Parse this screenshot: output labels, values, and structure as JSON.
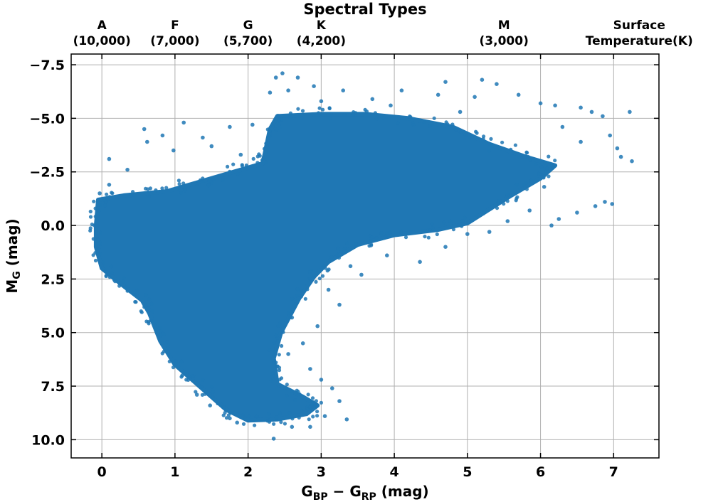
{
  "chart_data": {
    "type": "scatter",
    "title": "Spectral Types",
    "xlabel": {
      "main": "G",
      "sub1": "BP",
      "mid": " − G",
      "sub2": "RP",
      "tail": " (mag)"
    },
    "ylabel": {
      "main": "M",
      "sub": "G",
      "tail": " (mag)"
    },
    "xlim": [
      -0.42,
      7.62
    ],
    "ylim": [
      10.85,
      -8.0
    ],
    "y_inverted": true,
    "grid": true,
    "point_color": "#1f77b4",
    "x_ticks": [
      {
        "value": 0,
        "label": "0"
      },
      {
        "value": 1,
        "label": "1"
      },
      {
        "value": 2,
        "label": "2"
      },
      {
        "value": 3,
        "label": "3"
      },
      {
        "value": 4,
        "label": "4"
      },
      {
        "value": 5,
        "label": "5"
      },
      {
        "value": 6,
        "label": "6"
      },
      {
        "value": 7,
        "label": "7"
      }
    ],
    "y_ticks": [
      {
        "value": -7.5,
        "label": "−7.5"
      },
      {
        "value": -5.0,
        "label": "−5.0"
      },
      {
        "value": -2.5,
        "label": "−2.5"
      },
      {
        "value": 0.0,
        "label": "0.0"
      },
      {
        "value": 2.5,
        "label": "2.5"
      },
      {
        "value": 5.0,
        "label": "5.0"
      },
      {
        "value": 7.5,
        "label": "7.5"
      },
      {
        "value": 10.0,
        "label": "10.0"
      }
    ],
    "top_axis": [
      {
        "x": 0,
        "line1": "A",
        "line2": "(10,000)"
      },
      {
        "x": 1,
        "line1": "F",
        "line2": "(7,000)"
      },
      {
        "x": 2,
        "line1": "G",
        "line2": "(5,700)"
      },
      {
        "x": 3,
        "line1": "K",
        "line2": "(4,200)"
      },
      {
        "x": 5.5,
        "line1": "M",
        "line2": "(3,000)"
      },
      {
        "x": 7.35,
        "line1": "Surface",
        "line2": "Temperature(K)"
      }
    ],
    "dense_region": [
      [
        -0.05,
        -1.2
      ],
      [
        0.3,
        -1.4
      ],
      [
        0.9,
        -1.6
      ],
      [
        1.4,
        -2.1
      ],
      [
        1.8,
        -2.5
      ],
      [
        2.2,
        -2.9
      ],
      [
        2.3,
        -4.5
      ],
      [
        2.4,
        -5.1
      ],
      [
        3.0,
        -5.2
      ],
      [
        3.6,
        -5.2
      ],
      [
        4.2,
        -5.0
      ],
      [
        4.8,
        -4.6
      ],
      [
        5.3,
        -3.8
      ],
      [
        5.8,
        -3.2
      ],
      [
        6.2,
        -2.8
      ],
      [
        6.0,
        -2.2
      ],
      [
        5.6,
        -1.4
      ],
      [
        5.0,
        -0.1
      ],
      [
        4.6,
        0.2
      ],
      [
        4.0,
        0.45
      ],
      [
        3.5,
        0.9
      ],
      [
        3.1,
        1.7
      ],
      [
        2.9,
        2.4
      ],
      [
        2.7,
        3.4
      ],
      [
        2.45,
        5.0
      ],
      [
        2.35,
        6.2
      ],
      [
        2.4,
        7.4
      ],
      [
        2.75,
        8.0
      ],
      [
        2.95,
        8.4
      ],
      [
        2.8,
        8.8
      ],
      [
        2.4,
        9.05
      ],
      [
        2.0,
        9.1
      ],
      [
        1.7,
        8.6
      ],
      [
        1.4,
        7.7
      ],
      [
        1.0,
        6.5
      ],
      [
        0.8,
        5.4
      ],
      [
        0.65,
        4.1
      ],
      [
        0.55,
        3.5
      ],
      [
        0.25,
        2.7
      ],
      [
        0.0,
        2.0
      ],
      [
        -0.08,
        1.0
      ],
      [
        -0.08,
        0.0
      ]
    ],
    "outlier_points": [
      [
        0.58,
        -4.5
      ],
      [
        0.83,
        -4.2
      ],
      [
        1.12,
        -4.8
      ],
      [
        1.38,
        -4.1
      ],
      [
        1.75,
        -4.6
      ],
      [
        2.06,
        -4.7
      ],
      [
        2.3,
        -6.2
      ],
      [
        2.38,
        -6.9
      ],
      [
        2.47,
        -7.1
      ],
      [
        2.68,
        -6.9
      ],
      [
        2.9,
        -6.5
      ],
      [
        3.3,
        -6.3
      ],
      [
        3.7,
        -5.9
      ],
      [
        4.1,
        -6.3
      ],
      [
        4.6,
        -6.1
      ],
      [
        4.7,
        -6.7
      ],
      [
        5.1,
        -6.0
      ],
      [
        5.2,
        -6.8
      ],
      [
        5.4,
        -6.6
      ],
      [
        5.7,
        -6.1
      ],
      [
        6.0,
        -5.7
      ],
      [
        6.2,
        -5.6
      ],
      [
        6.55,
        -5.5
      ],
      [
        6.7,
        -5.3
      ],
      [
        6.85,
        -5.1
      ],
      [
        7.22,
        -5.3
      ],
      [
        6.95,
        -4.2
      ],
      [
        7.05,
        -3.6
      ],
      [
        7.1,
        -3.2
      ],
      [
        7.25,
        -3.0
      ],
      [
        6.88,
        -1.1
      ],
      [
        6.98,
        -1.0
      ],
      [
        6.75,
        -0.9
      ],
      [
        6.5,
        -0.6
      ],
      [
        6.25,
        -0.3
      ],
      [
        5.85,
        -0.7
      ],
      [
        6.15,
        0.0
      ],
      [
        5.3,
        0.3
      ],
      [
        4.7,
        1.0
      ],
      [
        4.35,
        1.7
      ],
      [
        3.55,
        2.3
      ],
      [
        3.25,
        3.7
      ],
      [
        2.95,
        4.7
      ],
      [
        2.75,
        5.5
      ],
      [
        2.85,
        6.7
      ],
      [
        3.15,
        7.6
      ],
      [
        3.25,
        8.2
      ],
      [
        3.35,
        9.05
      ],
      [
        2.85,
        9.4
      ],
      [
        2.35,
        9.95
      ],
      [
        1.85,
        9.2
      ],
      [
        1.48,
        8.4
      ],
      [
        1.1,
        7.0
      ],
      [
        0.1,
        -3.1
      ],
      [
        0.35,
        -2.6
      ],
      [
        0.62,
        -3.9
      ],
      [
        0.98,
        -3.5
      ],
      [
        1.5,
        -3.7
      ],
      [
        1.9,
        -3.3
      ],
      [
        0.1,
        -1.9
      ],
      [
        -0.03,
        -1.5
      ],
      [
        5.55,
        -0.2
      ],
      [
        6.05,
        -1.8
      ],
      [
        6.55,
        -3.9
      ],
      [
        6.3,
        -4.6
      ],
      [
        4.9,
        -5.3
      ],
      [
        3.95,
        -5.6
      ],
      [
        3.0,
        -5.8
      ],
      [
        2.55,
        -6.3
      ],
      [
        5.0,
        0.4
      ],
      [
        3.9,
        1.4
      ],
      [
        3.4,
        1.9
      ],
      [
        3.1,
        3.0
      ],
      [
        2.6,
        4.3
      ],
      [
        2.55,
        6.0
      ],
      [
        3.0,
        7.2
      ],
      [
        3.05,
        8.9
      ],
      [
        2.6,
        9.4
      ],
      [
        1.75,
        9.0
      ],
      [
        1.3,
        7.9
      ]
    ]
  }
}
